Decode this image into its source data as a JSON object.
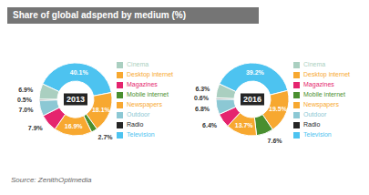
{
  "chart_data": [
    {
      "type": "pie",
      "title": "Share of global adspend by medium (%)",
      "subtitle": "2013",
      "categories": [
        "Television",
        "Desktop internet",
        "Mobile internet",
        "Newspapers",
        "Magazines",
        "Outdoor",
        "Radio",
        "Cinema"
      ],
      "values": [
        40.1,
        18.1,
        2.7,
        16.9,
        7.9,
        7.0,
        0.5,
        6.9
      ],
      "value_labels": [
        "40.1%",
        "18.1%",
        "2.7%",
        "16.9%",
        "7.9%",
        "7.0%",
        "0.5%",
        "6.9%"
      ],
      "colors": [
        "#4DC3F0",
        "#F7A830",
        "#4A8F2F",
        "#F7A830",
        "#E5246E",
        "#8CC8D4",
        "#252525",
        "#AACFC0"
      ],
      "data_labels": true,
      "legend": "right",
      "annotations": [
        "Source: ZenithOptimedia"
      ]
    },
    {
      "type": "pie",
      "subtitle": "2016",
      "categories": [
        "Television",
        "Desktop internet",
        "Mobile internet",
        "Newspapers",
        "Magazines",
        "Outdoor",
        "Radio",
        "Cinema"
      ],
      "values": [
        39.2,
        19.5,
        7.6,
        13.7,
        6.4,
        6.8,
        0.6,
        6.3
      ],
      "value_labels": [
        "39.2%",
        "19.5%",
        "7.6%",
        "13.7%",
        "6.4%",
        "6.8%",
        "0.6%",
        "6.3%"
      ],
      "colors": [
        "#4DC3F0",
        "#F7A830",
        "#4A8F2F",
        "#F7A830",
        "#E5246E",
        "#8CC8D4",
        "#252525",
        "#AACFC0"
      ],
      "data_labels": true,
      "legend": "right"
    }
  ]
}
